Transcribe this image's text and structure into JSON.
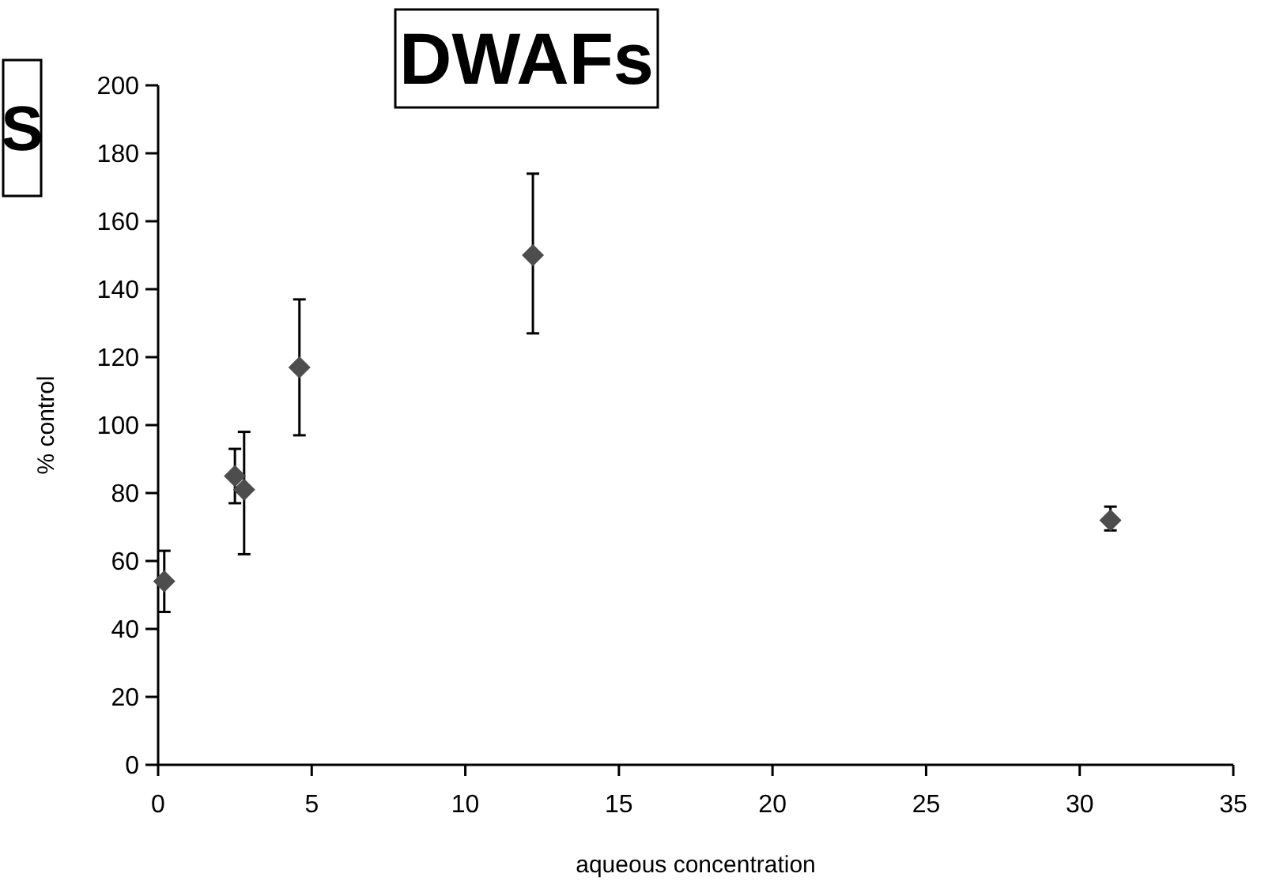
{
  "chart_data": {
    "type": "scatter",
    "title": "DWAFs",
    "xlabel": "aqueous concentration",
    "ylabel": "% control",
    "annotations": [
      "S"
    ],
    "x": [
      0.2,
      2.5,
      2.8,
      4.6,
      12.2,
      31
    ],
    "series": [
      {
        "color": "#4d4d4d",
        "values": [
          54,
          85,
          81,
          117,
          150,
          72
        ],
        "errors": [
          [
            45,
            63
          ],
          [
            77,
            93
          ],
          [
            62,
            98
          ],
          [
            97,
            137
          ],
          [
            127,
            174
          ],
          [
            69,
            76
          ]
        ]
      }
    ],
    "xlim": [
      0,
      35
    ],
    "xticks": [
      0,
      5,
      10,
      15,
      20,
      25,
      30,
      35
    ],
    "ylim": [
      0,
      200
    ],
    "yticks": [
      0,
      20,
      40,
      60,
      80,
      100,
      120,
      140,
      160,
      180,
      200
    ],
    "marker": "diamond",
    "grid": false
  }
}
